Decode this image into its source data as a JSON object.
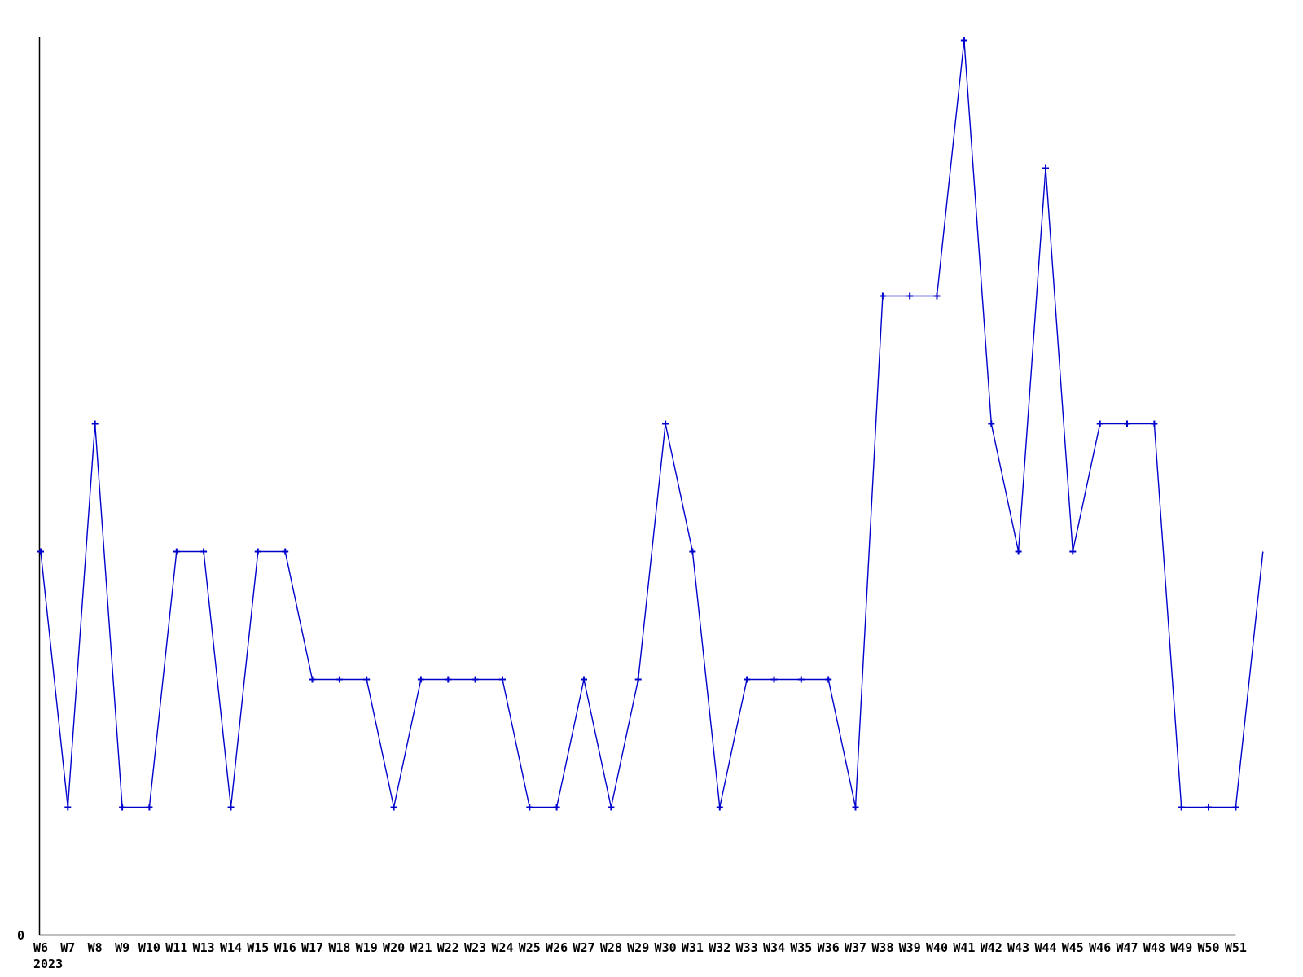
{
  "chart_data": {
    "type": "line",
    "title": "",
    "legend": "none",
    "grid": false,
    "marker": "plus",
    "line_color": "#0000cc",
    "axis_color": "#000000",
    "text_color": "#000000",
    "background_color": "#ffffff",
    "y_origin_label": "0",
    "x_label_year": "2023",
    "ylim": [
      0,
      7.2
    ],
    "categories": [
      "W6",
      "W7",
      "W8",
      "W9",
      "W10",
      "W11",
      "W13",
      "W14",
      "W15",
      "W16",
      "W17",
      "W18",
      "W19",
      "W20",
      "W21",
      "W22",
      "W23",
      "W24",
      "W25",
      "W26",
      "W27",
      "W28",
      "W29",
      "W30",
      "W31",
      "W32",
      "W33",
      "W34",
      "W35",
      "W36",
      "W37",
      "W38",
      "W39",
      "W40",
      "W41",
      "W42",
      "W43",
      "W44",
      "W45",
      "W46",
      "W47",
      "W48",
      "W49",
      "W50",
      "W51"
    ],
    "values": [
      3,
      1,
      4,
      1,
      1,
      3,
      3,
      1,
      3,
      3,
      2,
      2,
      2,
      1,
      2,
      2,
      2,
      2,
      1,
      1,
      2,
      1,
      2,
      4,
      3,
      1,
      2,
      2,
      2,
      2,
      1,
      5,
      5,
      5,
      7,
      4,
      3,
      6,
      3,
      4,
      4,
      4,
      1,
      1,
      1
    ],
    "trailing_unlabeled_point_value": 3,
    "trailing_point_has_marker": false
  }
}
